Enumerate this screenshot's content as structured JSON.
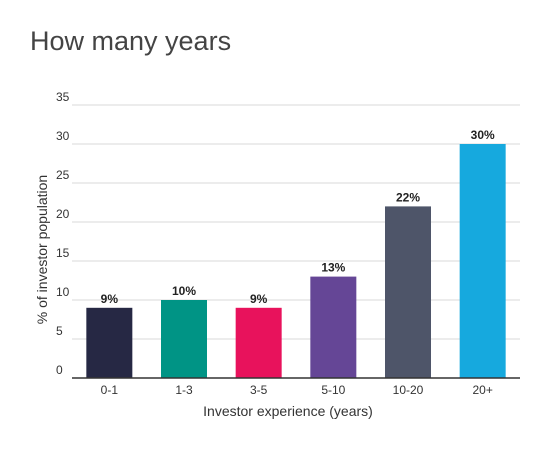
{
  "chart_data": {
    "type": "bar",
    "title": "How many years",
    "xlabel": "Investor experience (years)",
    "ylabel": "% of investor population",
    "categories": [
      "0-1",
      "1-3",
      "3-5",
      "5-10",
      "10-20",
      "20+"
    ],
    "values": [
      9,
      10,
      9,
      13,
      22,
      30
    ],
    "data_labels": [
      "9%",
      "10%",
      "9%",
      "13%",
      "22%",
      "30%"
    ],
    "colors": [
      "#262844",
      "#009485",
      "#e8125c",
      "#654696",
      "#4e5569",
      "#16a9de"
    ],
    "ylim": [
      0,
      35
    ],
    "yticks": [
      0,
      5,
      10,
      15,
      20,
      25,
      30,
      35
    ],
    "grid": true,
    "legend": "none"
  }
}
